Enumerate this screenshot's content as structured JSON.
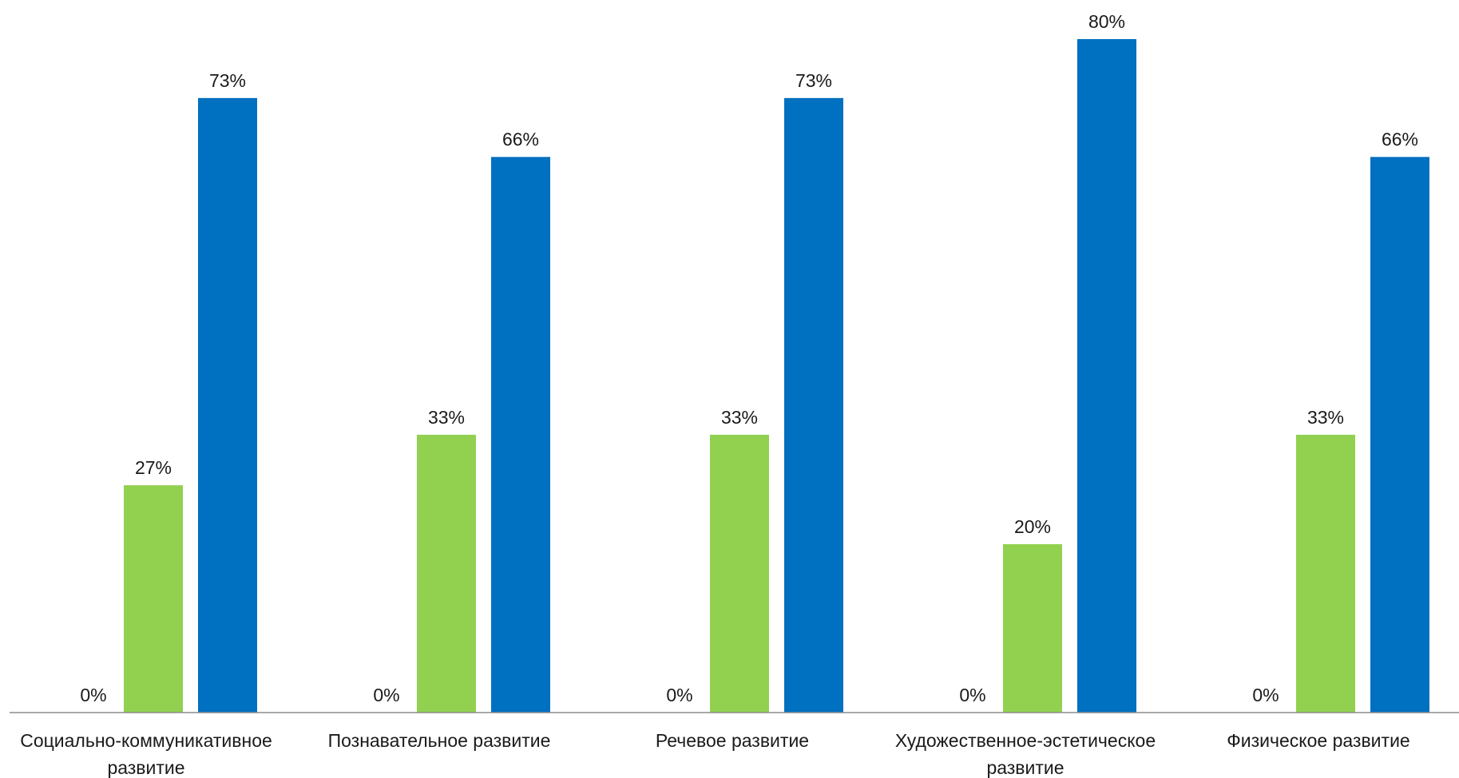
{
  "chart_data": {
    "type": "bar",
    "categories": [
      [
        "Социально-коммуникативное",
        "развитие"
      ],
      [
        "Познавательное развитие"
      ],
      [
        "Речевое развитие"
      ],
      [
        "Художественное-эстетическое",
        "развитие"
      ],
      [
        "Физическое развитие"
      ]
    ],
    "series": [
      {
        "values": [
          0,
          0,
          0,
          0,
          0
        ],
        "labels": [
          "0%",
          "0%",
          "0%",
          "0%",
          "0%"
        ],
        "color": "#4472c4"
      },
      {
        "values": [
          27,
          33,
          33,
          20,
          33
        ],
        "labels": [
          "27%",
          "33%",
          "33%",
          "20%",
          "33%"
        ],
        "color": "#92d050"
      },
      {
        "values": [
          73,
          66,
          73,
          80,
          66
        ],
        "labels": [
          "73%",
          "66%",
          "73%",
          "80%",
          "66%"
        ],
        "color": "#0070c0"
      }
    ],
    "ylim": [
      0,
      80
    ],
    "value_unit": "%",
    "grid": false,
    "legend": "none"
  }
}
